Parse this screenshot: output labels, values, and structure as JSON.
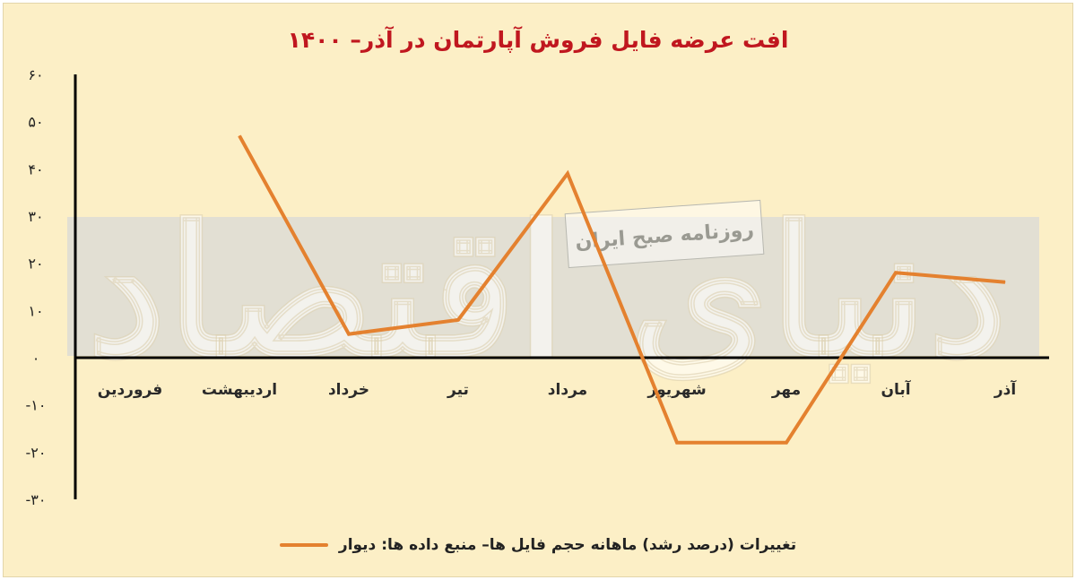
{
  "chart_data": {
    "type": "line",
    "title": "افت عرضه فایل فروش آپارتمان در آذر– ۱۴۰۰",
    "categories": [
      "فروردین",
      "اردیبهشت",
      "خرداد",
      "تیر",
      "مرداد",
      "شهریور",
      "مهر",
      "آبان",
      "آذر"
    ],
    "series": [
      {
        "name": "تغییرات (درصد رشد) ماهانه حجم فایل ها– منبع داده ها: دیوار",
        "values": [
          null,
          47,
          5,
          8,
          39,
          -18,
          -18,
          18,
          16
        ],
        "color": "#e4812f"
      }
    ],
    "yticks": [
      60,
      50,
      40,
      30,
      20,
      10,
      0,
      -10,
      -20,
      -30
    ],
    "ytick_labels": [
      "۶۰",
      "۵۰",
      "۴۰",
      "۳۰",
      "۲۰",
      "۱۰",
      "۰",
      "-۱۰",
      "-۲۰",
      "-۳۰"
    ],
    "ylim": [
      -30,
      60
    ],
    "grid": false,
    "legend_position": "bottom",
    "background_color": "#fcefc6",
    "title_color": "#c0171f"
  },
  "watermark": {
    "main_text": "دنیای اقتصاد",
    "badge_text": "روزنامه صبح ایران"
  }
}
